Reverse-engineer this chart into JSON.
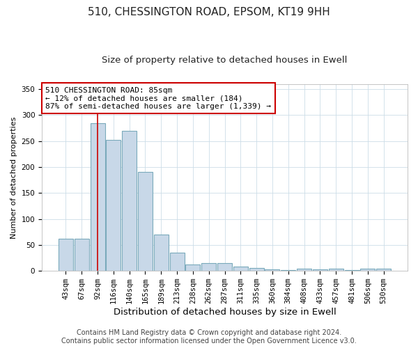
{
  "title1": "510, CHESSINGTON ROAD, EPSOM, KT19 9HH",
  "title2": "Size of property relative to detached houses in Ewell",
  "xlabel": "Distribution of detached houses by size in Ewell",
  "ylabel": "Number of detached properties",
  "bin_labels": [
    "43sqm",
    "67sqm",
    "92sqm",
    "116sqm",
    "140sqm",
    "165sqm",
    "189sqm",
    "213sqm",
    "238sqm",
    "262sqm",
    "287sqm",
    "311sqm",
    "335sqm",
    "360sqm",
    "384sqm",
    "408sqm",
    "433sqm",
    "457sqm",
    "481sqm",
    "506sqm",
    "530sqm"
  ],
  "bar_heights": [
    62,
    62,
    285,
    252,
    270,
    190,
    70,
    35,
    12,
    15,
    15,
    9,
    5,
    3,
    2,
    4,
    3,
    4,
    1,
    4,
    4
  ],
  "bar_color": "#c8d8e8",
  "bar_edge_color": "#7aaabb",
  "vline_x_index": 2,
  "vline_color": "#cc0000",
  "annotation_title": "510 CHESSINGTON ROAD: 85sqm",
  "annotation_line1": "← 12% of detached houses are smaller (184)",
  "annotation_line2": "87% of semi-detached houses are larger (1,339) →",
  "annotation_box_color": "#ffffff",
  "annotation_box_edge": "#cc0000",
  "ylim": [
    0,
    360
  ],
  "yticks": [
    0,
    50,
    100,
    150,
    200,
    250,
    300,
    350
  ],
  "footer1": "Contains HM Land Registry data © Crown copyright and database right 2024.",
  "footer2": "Contains public sector information licensed under the Open Government Licence v3.0.",
  "title1_fontsize": 11,
  "title2_fontsize": 9.5,
  "xlabel_fontsize": 9.5,
  "ylabel_fontsize": 8,
  "tick_fontsize": 7.5,
  "annotation_fontsize": 8,
  "footer_fontsize": 7
}
